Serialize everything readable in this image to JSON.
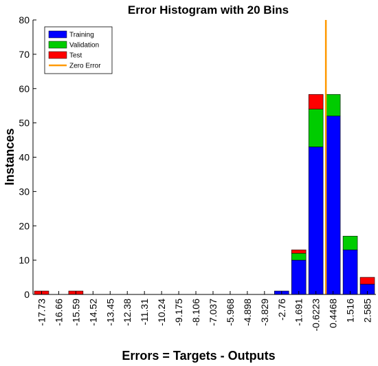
{
  "chart_data": {
    "type": "bar",
    "title": "Error Histogram with 20 Bins",
    "xlabel": "Errors = Targets - Outputs",
    "ylabel": "Instances",
    "ylim": [
      0,
      80
    ],
    "yticks": [
      "0",
      "10",
      "20",
      "30",
      "40",
      "50",
      "60",
      "70",
      "80"
    ],
    "categories": [
      "-17.73",
      "-16.66",
      "-15.59",
      "-14.52",
      "-13.45",
      "-12.38",
      "-11.31",
      "-10.24",
      "-9.175",
      "-8.106",
      "-7.037",
      "-5.968",
      "-4.898",
      "-3.829",
      "-2.76",
      "-1.691",
      "-0.6223",
      "0.4468",
      "1.516",
      "2.585"
    ],
    "stacked": true,
    "series": [
      {
        "name": "Training",
        "color": "#0000ff",
        "values": [
          0,
          0,
          0,
          0,
          0,
          0,
          0,
          0,
          0,
          0,
          0,
          0,
          0,
          0,
          1,
          10,
          43,
          52,
          13,
          3
        ]
      },
      {
        "name": "Validation",
        "color": "#00cc00",
        "values": [
          0,
          0,
          0,
          0,
          0,
          0,
          0,
          0,
          0,
          0,
          0,
          0,
          0,
          0,
          0,
          2,
          11,
          6.3,
          4,
          0
        ]
      },
      {
        "name": "Test",
        "color": "#ff0000",
        "values": [
          1,
          0,
          1,
          0,
          0,
          0,
          0,
          0,
          0,
          0,
          0,
          0,
          0,
          0,
          0,
          1,
          4.3,
          0,
          0,
          2
        ]
      }
    ],
    "zero_error": {
      "name": "Zero Error",
      "color": "#ff9900",
      "position_between": [
        "-0.6223",
        "0.4468"
      ],
      "fraction": 0.58
    },
    "legend_placement": "top-left",
    "grid": false
  }
}
